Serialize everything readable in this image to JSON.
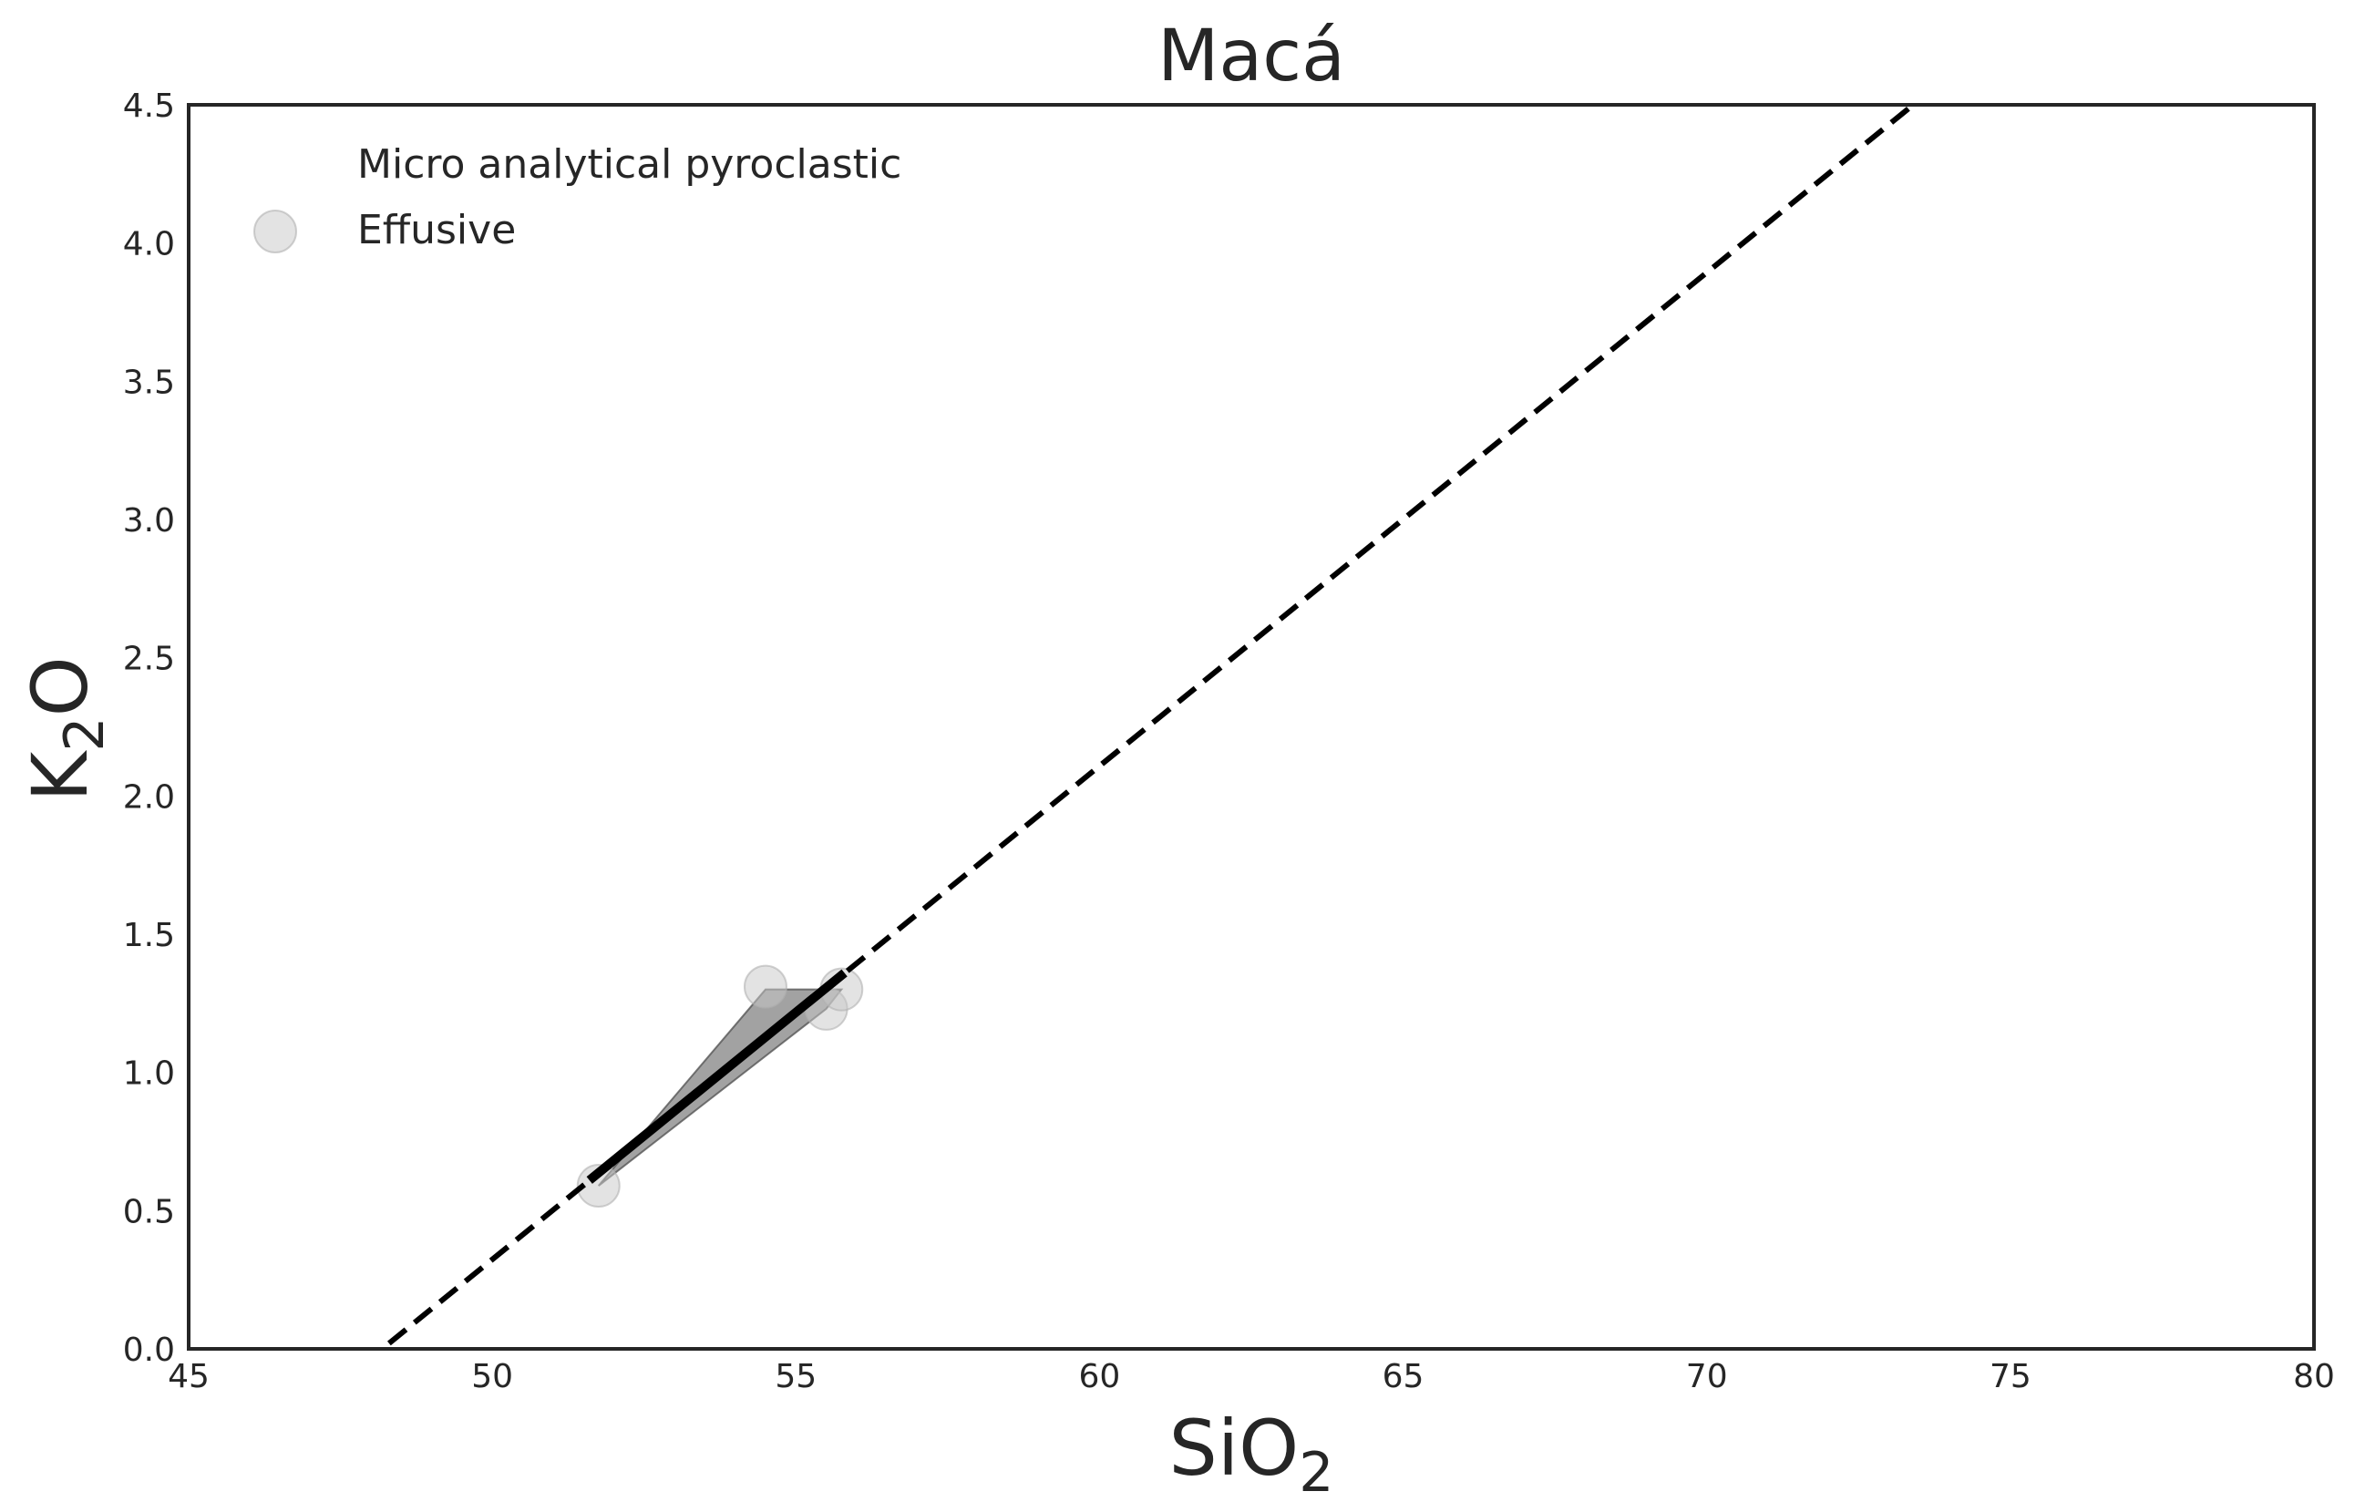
{
  "chart_data": {
    "type": "scatter",
    "title": "Macá",
    "xlabel": {
      "main": "SiO",
      "sub": "2"
    },
    "ylabel": {
      "main": "K",
      "sub": "2",
      "tail": "O"
    },
    "xlim": [
      45,
      80
    ],
    "ylim": [
      0,
      4.5
    ],
    "xticks": [
      45,
      50,
      55,
      60,
      65,
      70,
      75,
      80
    ],
    "yticks": [
      0.0,
      0.5,
      1.0,
      1.5,
      2.0,
      2.5,
      3.0,
      3.5,
      4.0,
      4.5
    ],
    "xtick_labels": [
      "45",
      "50",
      "55",
      "60",
      "65",
      "70",
      "75",
      "80"
    ],
    "ytick_labels": [
      "0.0",
      "0.5",
      "1.0",
      "1.5",
      "2.0",
      "2.5",
      "3.0",
      "3.5",
      "4.0",
      "4.5"
    ],
    "grid": false,
    "legend": {
      "placement": "top-left",
      "entries": [
        "Micro analytical pyroclastic",
        "Effusive"
      ]
    },
    "series": [
      {
        "name": "Effusive",
        "kind": "scatter",
        "color": "#c8c8c8",
        "points": [
          {
            "x": 51.75,
            "y": 0.59
          },
          {
            "x": 54.5,
            "y": 1.31
          },
          {
            "x": 55.5,
            "y": 1.23
          },
          {
            "x": 55.75,
            "y": 1.3
          }
        ]
      }
    ],
    "hull": {
      "color": "#555555",
      "points": [
        {
          "x": 51.75,
          "y": 0.59
        },
        {
          "x": 54.5,
          "y": 1.3
        },
        {
          "x": 55.75,
          "y": 1.3
        },
        {
          "x": 55.5,
          "y": 1.23
        }
      ]
    },
    "regression_line": {
      "color": "#000000",
      "points": [
        {
          "x": 51.6,
          "y": 0.61
        },
        {
          "x": 55.8,
          "y": 1.36
        }
      ]
    },
    "reference_line": {
      "style": "dashed",
      "color": "#000000",
      "points": [
        {
          "x": 48.3,
          "y": 0.02
        },
        {
          "x": 73.4,
          "y": 4.5
        }
      ]
    }
  }
}
